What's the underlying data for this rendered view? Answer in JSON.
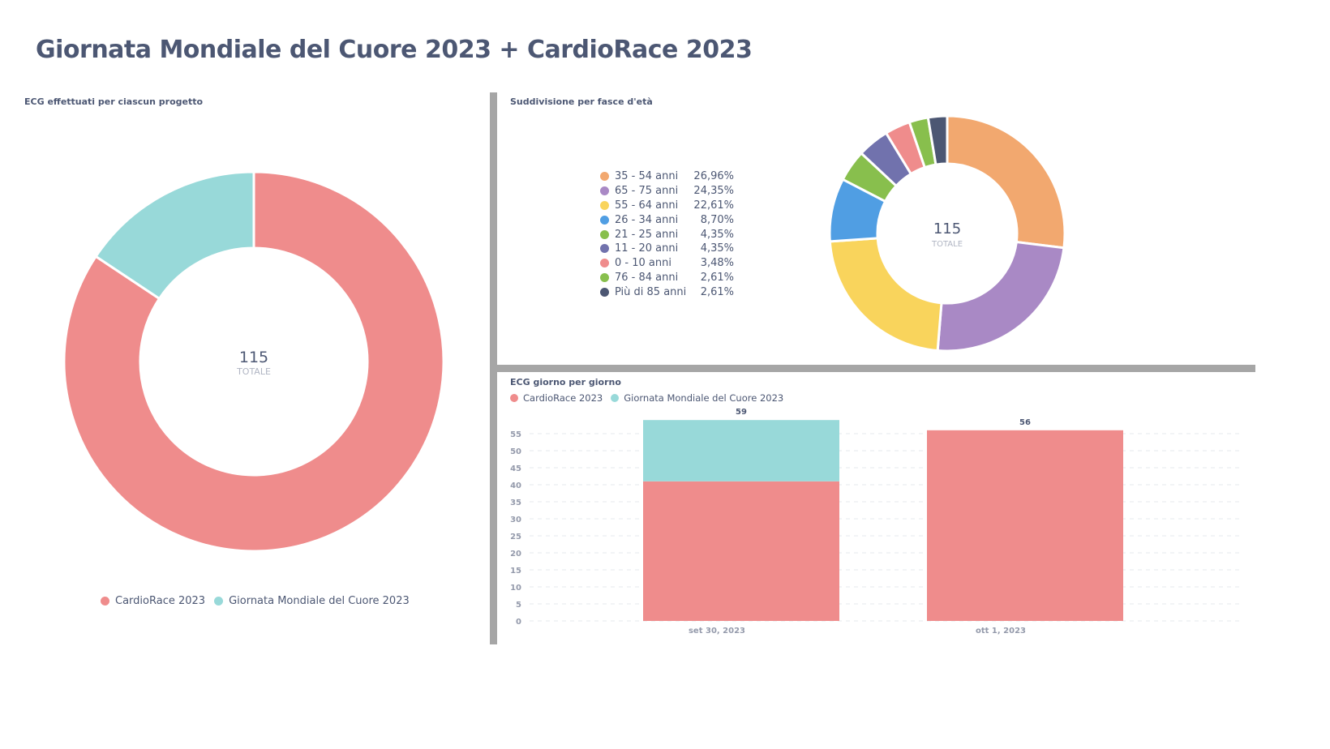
{
  "page": {
    "title": "Giornata Mondiale del Cuore 2023 + CardioRace 2023"
  },
  "colors": {
    "text": "#4C5773",
    "muted": "#949AAB",
    "cardiorace": "#EF8C8C",
    "giornata": "#98D9D9"
  },
  "chart_data": [
    {
      "type": "pie",
      "title": "ECG effettuati per ciascun progetto",
      "center_value": "115",
      "center_label": "TOTALE",
      "legend_position": "bottom",
      "slices": [
        {
          "label": "CardioRace 2023",
          "value": 97,
          "color": "#EF8C8C"
        },
        {
          "label": "Giornata Mondiale del Cuore 2023",
          "value": 18,
          "color": "#98D9D9"
        }
      ]
    },
    {
      "type": "pie",
      "title": "Suddivisione per fasce d'età",
      "center_value": "115",
      "center_label": "TOTALE",
      "legend_position": "left",
      "slices": [
        {
          "label": "35 - 54 anni",
          "percent": "26,96%",
          "value": 31,
          "color": "#F2A86F"
        },
        {
          "label": "65 - 75 anni",
          "percent": "24,35%",
          "value": 28,
          "color": "#A989C5"
        },
        {
          "label": "55 - 64 anni",
          "percent": "22,61%",
          "value": 26,
          "color": "#F9D45C"
        },
        {
          "label": "26 - 34 anni",
          "percent": "8,70%",
          "value": 10,
          "color": "#509EE3"
        },
        {
          "label": "21 - 25 anni",
          "percent": "4,35%",
          "value": 5,
          "color": "#88BF4D"
        },
        {
          "label": "11 - 20 anni",
          "percent": "4,35%",
          "value": 5,
          "color": "#7172AD"
        },
        {
          "label": "0 - 10 anni",
          "percent": "3,48%",
          "value": 4,
          "color": "#EF8C8C"
        },
        {
          "label": "76 - 84 anni",
          "percent": "2,61%",
          "value": 3,
          "color": "#88BF4D"
        },
        {
          "label": "Più di 85 anni",
          "percent": "2,61%",
          "value": 3,
          "color": "#4C5773"
        }
      ]
    },
    {
      "type": "bar",
      "stacked": true,
      "title": "ECG giorno per giorno",
      "legend_position": "top-left",
      "categories": [
        "set 30, 2023",
        "ott 1, 2023"
      ],
      "series": [
        {
          "name": "CardioRace 2023",
          "values": [
            41,
            56
          ],
          "color": "#EF8C8C"
        },
        {
          "name": "Giornata Mondiale del Cuore 2023",
          "values": [
            18,
            0
          ],
          "color": "#98D9D9"
        }
      ],
      "totals": [
        59,
        56
      ],
      "yticks": [
        0,
        5,
        10,
        15,
        20,
        25,
        30,
        35,
        40,
        45,
        50,
        55
      ],
      "ylim": [
        0,
        59
      ],
      "grid": true,
      "xlabel": "",
      "ylabel": ""
    }
  ]
}
